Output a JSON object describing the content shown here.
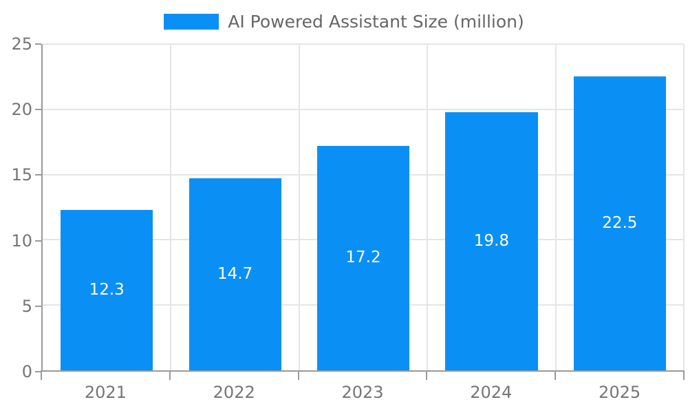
{
  "legend": {
    "label": "AI Powered Assistant Size (million)"
  },
  "colors": {
    "bar": "#0a90f5",
    "grid": "#e5e5e5",
    "axis": "#9a9a9a",
    "tick_label": "#757575",
    "legend_text": "#666666",
    "bar_label": "#ffffff",
    "background": "#ffffff"
  },
  "chart_data": {
    "type": "bar",
    "title": "",
    "xlabel": "",
    "ylabel": "",
    "categories": [
      "2021",
      "2022",
      "2023",
      "2024",
      "2025"
    ],
    "series": [
      {
        "name": "AI Powered Assistant Size (million)",
        "values": [
          12.3,
          14.7,
          17.2,
          19.8,
          22.5
        ]
      }
    ],
    "value_labels": [
      "12.3",
      "14.7",
      "17.2",
      "19.8",
      "22.5"
    ],
    "value_label_position": "inside-center",
    "ylim": [
      0,
      25
    ],
    "yticks": [
      0,
      5,
      10,
      15,
      20,
      25
    ],
    "grid": true,
    "legend_position": "top-center",
    "bar_color": "#0a90f5"
  }
}
